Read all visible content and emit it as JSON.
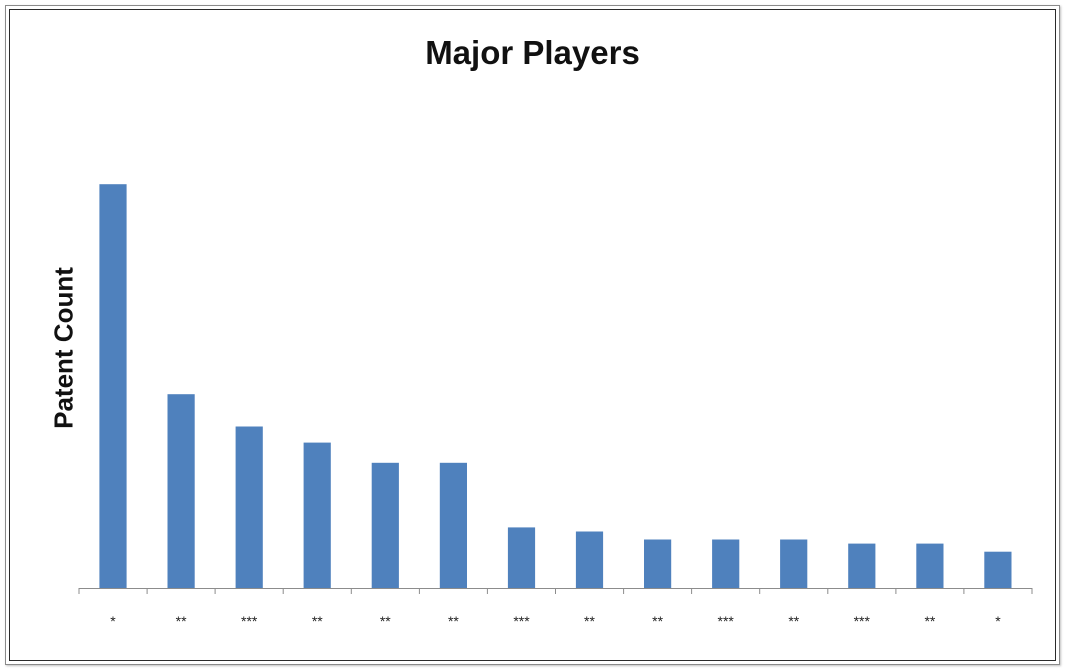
{
  "chart_data": {
    "type": "bar",
    "title": "Major Players",
    "xlabel": "",
    "ylabel": "Patent Count",
    "categories": [
      "*",
      "**",
      "***",
      "**",
      "**",
      "**",
      "***",
      "**",
      "**",
      "***",
      "**",
      "***",
      "**",
      "*"
    ],
    "values": [
      100,
      48,
      40,
      36,
      31,
      31,
      15,
      14,
      12,
      12,
      12,
      11,
      11,
      9
    ],
    "ylim": [
      0,
      104
    ],
    "y_ticks_shown": false,
    "grid": false,
    "legend": "none",
    "bar_color": "#4f81bd"
  }
}
